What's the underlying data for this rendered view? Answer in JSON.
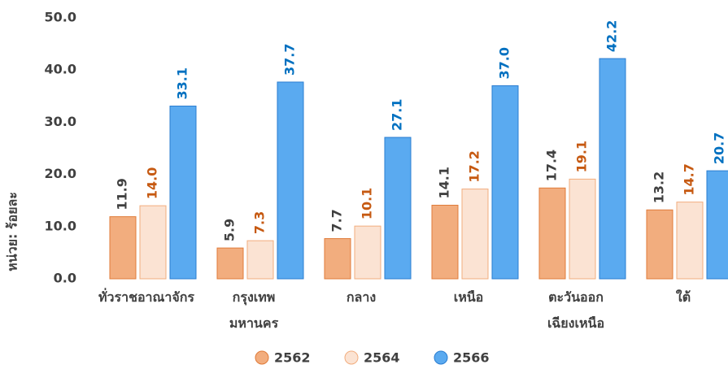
{
  "chart_data": {
    "type": "bar",
    "y_label": "หน่วย: ร้อยละ",
    "categories": [
      "ทั่วราชอาณาจักร",
      "กรุงเทพ\nมหานคร",
      "กลาง",
      "เหนือ",
      "ตะวันออก\nเฉียงเหนือ",
      "ใต้"
    ],
    "series": [
      {
        "name": "2562",
        "color": "#f2ad7e",
        "stroke": "#e07b39",
        "label_color": "#404040",
        "values": [
          11.9,
          5.9,
          7.7,
          14.1,
          17.4,
          13.2
        ],
        "value_labels": [
          "11.9",
          "5.9",
          "7.7",
          "14.1",
          "17.4",
          "13.2"
        ]
      },
      {
        "name": "2564",
        "color": "#fbe3d3",
        "stroke": "#f2ad7e",
        "label_color": "#c65911",
        "values": [
          14.0,
          7.3,
          10.1,
          17.2,
          19.1,
          14.7
        ],
        "value_labels": [
          "14.0",
          "7.3",
          "10.1",
          "17.2",
          "19.1",
          "14.7"
        ]
      },
      {
        "name": "2566",
        "color": "#5aaaf0",
        "stroke": "#2a7dd1",
        "label_color": "#0070c0",
        "values": [
          33.1,
          37.7,
          27.1,
          37.0,
          42.2,
          20.7
        ],
        "value_labels": [
          "33.1",
          "37.7",
          "27.1",
          "37.0",
          "42.2",
          "20.7"
        ]
      }
    ],
    "ylim": [
      0,
      50
    ],
    "yticks": [
      {
        "value": 0,
        "label": "0.0"
      },
      {
        "value": 10,
        "label": "10.0"
      },
      {
        "value": 20,
        "label": "20.0"
      },
      {
        "value": 30,
        "label": "30.0"
      },
      {
        "value": 40,
        "label": "40.0"
      },
      {
        "value": 50,
        "label": "50.0"
      }
    ],
    "grid": false,
    "legend": "bottom"
  }
}
